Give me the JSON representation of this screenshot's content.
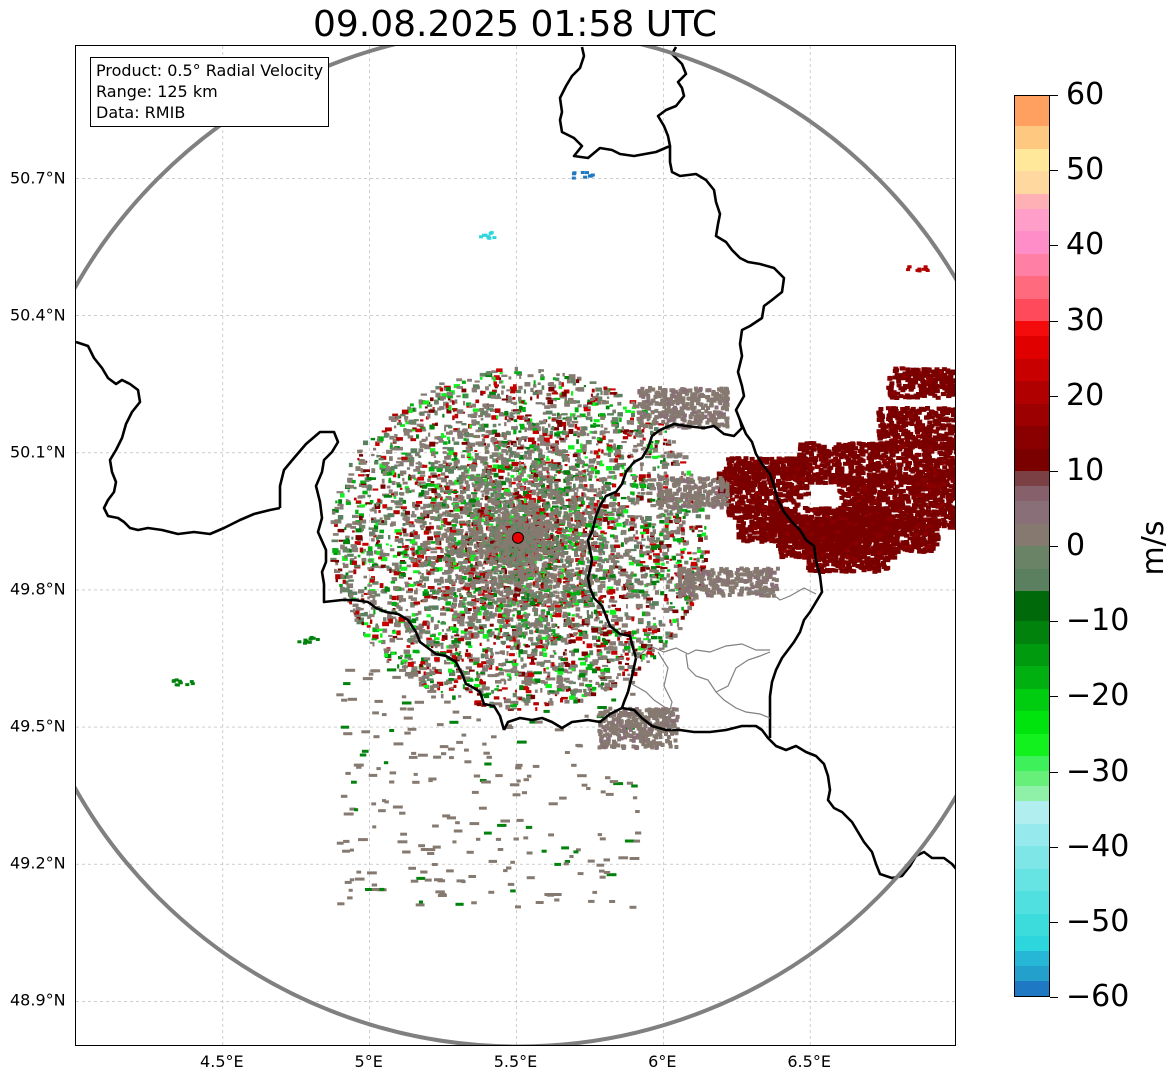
{
  "title": "09.08.2025 01:58 UTC",
  "info": {
    "product": "Product: 0.5° Radial Velocity",
    "range": "Range: 125 km",
    "data": "Data: RMIB"
  },
  "lat_labels": [
    "50.7°N",
    "50.4°N",
    "50.1°N",
    "49.8°N",
    "49.5°N",
    "49.2°N",
    "48.9°N"
  ],
  "lat_values": [
    50.7,
    50.4,
    50.1,
    49.8,
    49.5,
    49.2,
    48.9
  ],
  "lon_labels": [
    "4.5°E",
    "5°E",
    "5.5°E",
    "6°E",
    "6.5°E"
  ],
  "lon_values": [
    4.5,
    5.0,
    5.5,
    6.0,
    6.5
  ],
  "map_extent": {
    "lon_min": 4.0,
    "lon_max": 7.0,
    "lat_min": 48.8,
    "lat_max": 50.99
  },
  "radar_site": {
    "lon": 5.505,
    "lat": 49.914,
    "color": "#e60000"
  },
  "range_ring_km": 125,
  "colorbar": {
    "unit": "m/s",
    "min": -60,
    "max": 60,
    "tick_labels": [
      "60",
      "50",
      "40",
      "30",
      "20",
      "10",
      "0",
      "−10",
      "−20",
      "−30",
      "−40",
      "−50",
      "−60"
    ],
    "tick_values": [
      60,
      50,
      40,
      30,
      20,
      10,
      0,
      -10,
      -20,
      -30,
      -40,
      -50,
      -60
    ],
    "stops": [
      {
        "from": -60,
        "to": -58,
        "color": "#1f78c4"
      },
      {
        "from": -58,
        "to": -56,
        "color": "#23a0cc"
      },
      {
        "from": -56,
        "to": -54,
        "color": "#27b7d6"
      },
      {
        "from": -54,
        "to": -52,
        "color": "#2cd6dc"
      },
      {
        "from": -52,
        "to": -49,
        "color": "#3cdcdc"
      },
      {
        "from": -49,
        "to": -46,
        "color": "#50e0e0"
      },
      {
        "from": -46,
        "to": -43,
        "color": "#66e3e3"
      },
      {
        "from": -43,
        "to": -40,
        "color": "#7fe6e8"
      },
      {
        "from": -40,
        "to": -37,
        "color": "#96e9ec"
      },
      {
        "from": -37,
        "to": -34,
        "color": "#b0eef0"
      },
      {
        "from": -34,
        "to": -32,
        "color": "#8ff0a8"
      },
      {
        "from": -32,
        "to": -30,
        "color": "#66f07a"
      },
      {
        "from": -30,
        "to": -28,
        "color": "#3ef05a"
      },
      {
        "from": -28,
        "to": -25,
        "color": "#12f01e"
      },
      {
        "from": -25,
        "to": -22,
        "color": "#00e40e"
      },
      {
        "from": -22,
        "to": -19,
        "color": "#00cc10"
      },
      {
        "from": -19,
        "to": -16,
        "color": "#00b010"
      },
      {
        "from": -16,
        "to": -13,
        "color": "#009a0e"
      },
      {
        "from": -13,
        "to": -10,
        "color": "#00820c"
      },
      {
        "from": -10,
        "to": -6,
        "color": "#006a0a"
      },
      {
        "from": -6,
        "to": -3,
        "color": "#5a8060"
      },
      {
        "from": -3,
        "to": 0,
        "color": "#6a8266"
      },
      {
        "from": 0,
        "to": 3,
        "color": "#867a70"
      },
      {
        "from": 3,
        "to": 6,
        "color": "#886f78"
      },
      {
        "from": 6,
        "to": 8,
        "color": "#86606a"
      },
      {
        "from": 8,
        "to": 10,
        "color": "#7a4044"
      },
      {
        "from": 10,
        "to": 13,
        "color": "#7a0000"
      },
      {
        "from": 13,
        "to": 16,
        "color": "#8a0000"
      },
      {
        "from": 16,
        "to": 19,
        "color": "#9c0000"
      },
      {
        "from": 19,
        "to": 22,
        "color": "#b00000"
      },
      {
        "from": 22,
        "to": 25,
        "color": "#c80000"
      },
      {
        "from": 25,
        "to": 28,
        "color": "#e00000"
      },
      {
        "from": 28,
        "to": 30,
        "color": "#f40c0c"
      },
      {
        "from": 30,
        "to": 33,
        "color": "#ff4a5c"
      },
      {
        "from": 33,
        "to": 36,
        "color": "#ff6a7e"
      },
      {
        "from": 36,
        "to": 39,
        "color": "#ff80a4"
      },
      {
        "from": 39,
        "to": 42,
        "color": "#ff8ec8"
      },
      {
        "from": 42,
        "to": 45,
        "color": "#ff9ec8"
      },
      {
        "from": 45,
        "to": 47,
        "color": "#ffb0b4"
      },
      {
        "from": 47,
        "to": 50,
        "color": "#ffd8a0"
      },
      {
        "from": 50,
        "to": 53,
        "color": "#ffe89a"
      },
      {
        "from": 53,
        "to": 56,
        "color": "#ffc880"
      },
      {
        "from": 56,
        "to": 60,
        "color": "#ffa060"
      }
    ]
  }
}
